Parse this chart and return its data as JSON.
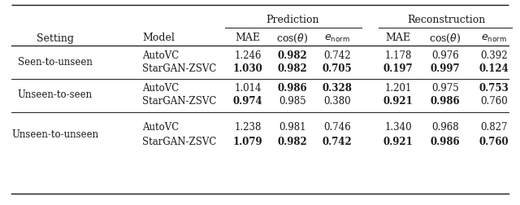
{
  "bg_color": "#ffffff",
  "text_color": "#1a1a1a",
  "sections": [
    {
      "setting": "Seen-to-unseen",
      "rows": [
        {
          "model": "AutoVC",
          "values": [
            "1.246",
            "0.982",
            "0.742",
            "1.178",
            "0.976",
            "0.392"
          ],
          "bold": [
            false,
            true,
            false,
            false,
            false,
            false
          ]
        },
        {
          "model": "StarGAN-ZSVC",
          "values": [
            "1.030",
            "0.982",
            "0.705",
            "0.197",
            "0.997",
            "0.124"
          ],
          "bold": [
            true,
            true,
            true,
            true,
            true,
            true
          ]
        }
      ]
    },
    {
      "setting": "Unseen-to-seen",
      "rows": [
        {
          "model": "AutoVC",
          "values": [
            "1.014",
            "0.986",
            "0.328",
            "1.201",
            "0.975",
            "0.753"
          ],
          "bold": [
            false,
            true,
            true,
            false,
            false,
            true
          ]
        },
        {
          "model": "StarGAN-ZSVC",
          "values": [
            "0.974",
            "0.985",
            "0.380",
            "0.921",
            "0.986",
            "0.760"
          ],
          "bold": [
            true,
            false,
            false,
            true,
            true,
            false
          ]
        }
      ]
    },
    {
      "setting": "Unseen-to-unseen",
      "rows": [
        {
          "model": "AutoVC",
          "values": [
            "1.238",
            "0.981",
            "0.746",
            "1.340",
            "0.968",
            "0.827"
          ],
          "bold": [
            false,
            false,
            false,
            false,
            false,
            false
          ]
        },
        {
          "model": "StarGAN-ZSVC",
          "values": [
            "1.079",
            "0.982",
            "0.742",
            "0.921",
            "0.986",
            "0.760"
          ],
          "bold": [
            true,
            true,
            true,
            true,
            true,
            true
          ]
        }
      ]
    }
  ]
}
